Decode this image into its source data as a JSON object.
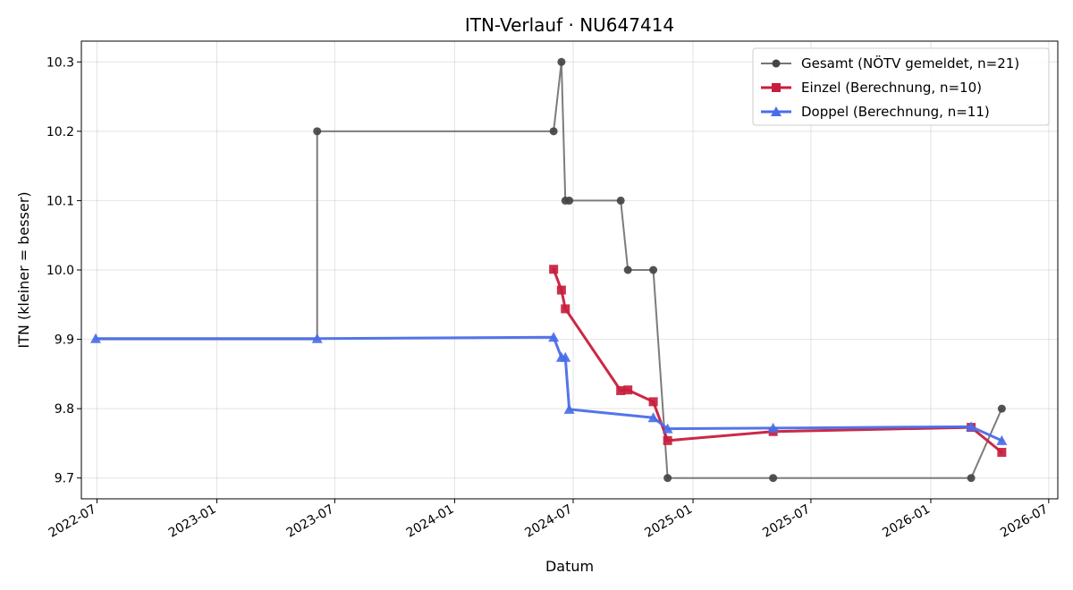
{
  "chart_data": {
    "type": "line",
    "title": "ITN-Verlauf · NU647414",
    "xlabel": "Datum",
    "ylabel": "ITN  (kleiner = besser)",
    "x_axis_type": "date",
    "xlim": [
      "2022-06-07",
      "2026-07-15"
    ],
    "ylim": [
      9.67,
      10.33
    ],
    "xticks": [
      "2022-07-01",
      "2023-01-01",
      "2023-07-01",
      "2024-01-01",
      "2024-07-01",
      "2025-01-01",
      "2025-07-01",
      "2026-01-01",
      "2026-07-01"
    ],
    "xtick_labels": [
      "2022-07",
      "2023-01",
      "2023-07",
      "2024-01",
      "2024-07",
      "2025-01",
      "2025-07",
      "2026-01",
      "2026-07"
    ],
    "yticks": [
      9.7,
      9.8,
      9.9,
      10.0,
      10.1,
      10.2,
      10.3
    ],
    "ytick_labels": [
      "9.7",
      "9.8",
      "9.9",
      "10.0",
      "10.1",
      "10.2",
      "10.3"
    ],
    "grid": true,
    "legend_position": "top-right",
    "series": [
      {
        "name": "Gesamt (NÖTV gemeldet, n=21)",
        "color": "#757575",
        "marker": "circle",
        "marker_color": "#444444",
        "line_width": 2,
        "drawstyle": "mixed",
        "points": [
          {
            "x": "2022-06-29",
            "y": 9.9
          },
          {
            "x": "2023-06-04",
            "y": 9.9
          },
          {
            "x": "2023-06-04",
            "y": 10.2
          },
          {
            "x": "2024-06-01",
            "y": 10.2
          },
          {
            "x": "2024-06-13",
            "y": 10.3
          },
          {
            "x": "2024-06-19",
            "y": 10.1
          },
          {
            "x": "2024-06-25",
            "y": 10.1
          },
          {
            "x": "2024-09-12",
            "y": 10.1
          },
          {
            "x": "2024-09-23",
            "y": 10.0
          },
          {
            "x": "2024-11-01",
            "y": 10.0
          },
          {
            "x": "2024-11-23",
            "y": 9.7
          },
          {
            "x": "2025-05-04",
            "y": 9.7
          },
          {
            "x": "2026-03-04",
            "y": 9.7
          },
          {
            "x": "2026-04-20",
            "y": 9.8
          }
        ],
        "marker_points": [
          {
            "x": "2023-06-04",
            "y": 10.2
          },
          {
            "x": "2024-06-01",
            "y": 10.2
          },
          {
            "x": "2024-06-13",
            "y": 10.3
          },
          {
            "x": "2024-06-19",
            "y": 10.1
          },
          {
            "x": "2024-06-25",
            "y": 10.1
          },
          {
            "x": "2024-09-12",
            "y": 10.1
          },
          {
            "x": "2024-09-23",
            "y": 10.0
          },
          {
            "x": "2024-11-01",
            "y": 10.0
          },
          {
            "x": "2024-11-23",
            "y": 9.7
          },
          {
            "x": "2025-05-04",
            "y": 9.7
          },
          {
            "x": "2026-03-04",
            "y": 9.7
          },
          {
            "x": "2026-04-20",
            "y": 9.8
          }
        ]
      },
      {
        "name": "Einzel (Berechnung, n=10)",
        "color": "#c81e3c",
        "marker": "square",
        "marker_color": "#c81e3c",
        "line_width": 3,
        "points": [
          {
            "x": "2024-06-01",
            "y": 10.001
          },
          {
            "x": "2024-06-13",
            "y": 9.971
          },
          {
            "x": "2024-06-19",
            "y": 9.944
          },
          {
            "x": "2024-09-12",
            "y": 9.826
          },
          {
            "x": "2024-09-23",
            "y": 9.827
          },
          {
            "x": "2024-11-01",
            "y": 9.81
          },
          {
            "x": "2024-11-23",
            "y": 9.754
          },
          {
            "x": "2025-05-04",
            "y": 9.767
          },
          {
            "x": "2026-03-04",
            "y": 9.773
          },
          {
            "x": "2026-04-20",
            "y": 9.737
          }
        ]
      },
      {
        "name": "Doppel (Berechnung, n=11)",
        "color": "#4a6ee8",
        "marker": "triangle",
        "marker_color": "#4a6ee8",
        "line_width": 3,
        "points": [
          {
            "x": "2022-06-29",
            "y": 9.901
          },
          {
            "x": "2023-06-04",
            "y": 9.901
          },
          {
            "x": "2024-06-01",
            "y": 9.903
          },
          {
            "x": "2024-06-13",
            "y": 9.874
          },
          {
            "x": "2024-06-19",
            "y": 9.874
          },
          {
            "x": "2024-06-25",
            "y": 9.799
          },
          {
            "x": "2024-11-01",
            "y": 9.787
          },
          {
            "x": "2024-11-23",
            "y": 9.771
          },
          {
            "x": "2025-05-04",
            "y": 9.772
          },
          {
            "x": "2026-03-04",
            "y": 9.774
          },
          {
            "x": "2026-04-20",
            "y": 9.754
          }
        ]
      }
    ]
  }
}
